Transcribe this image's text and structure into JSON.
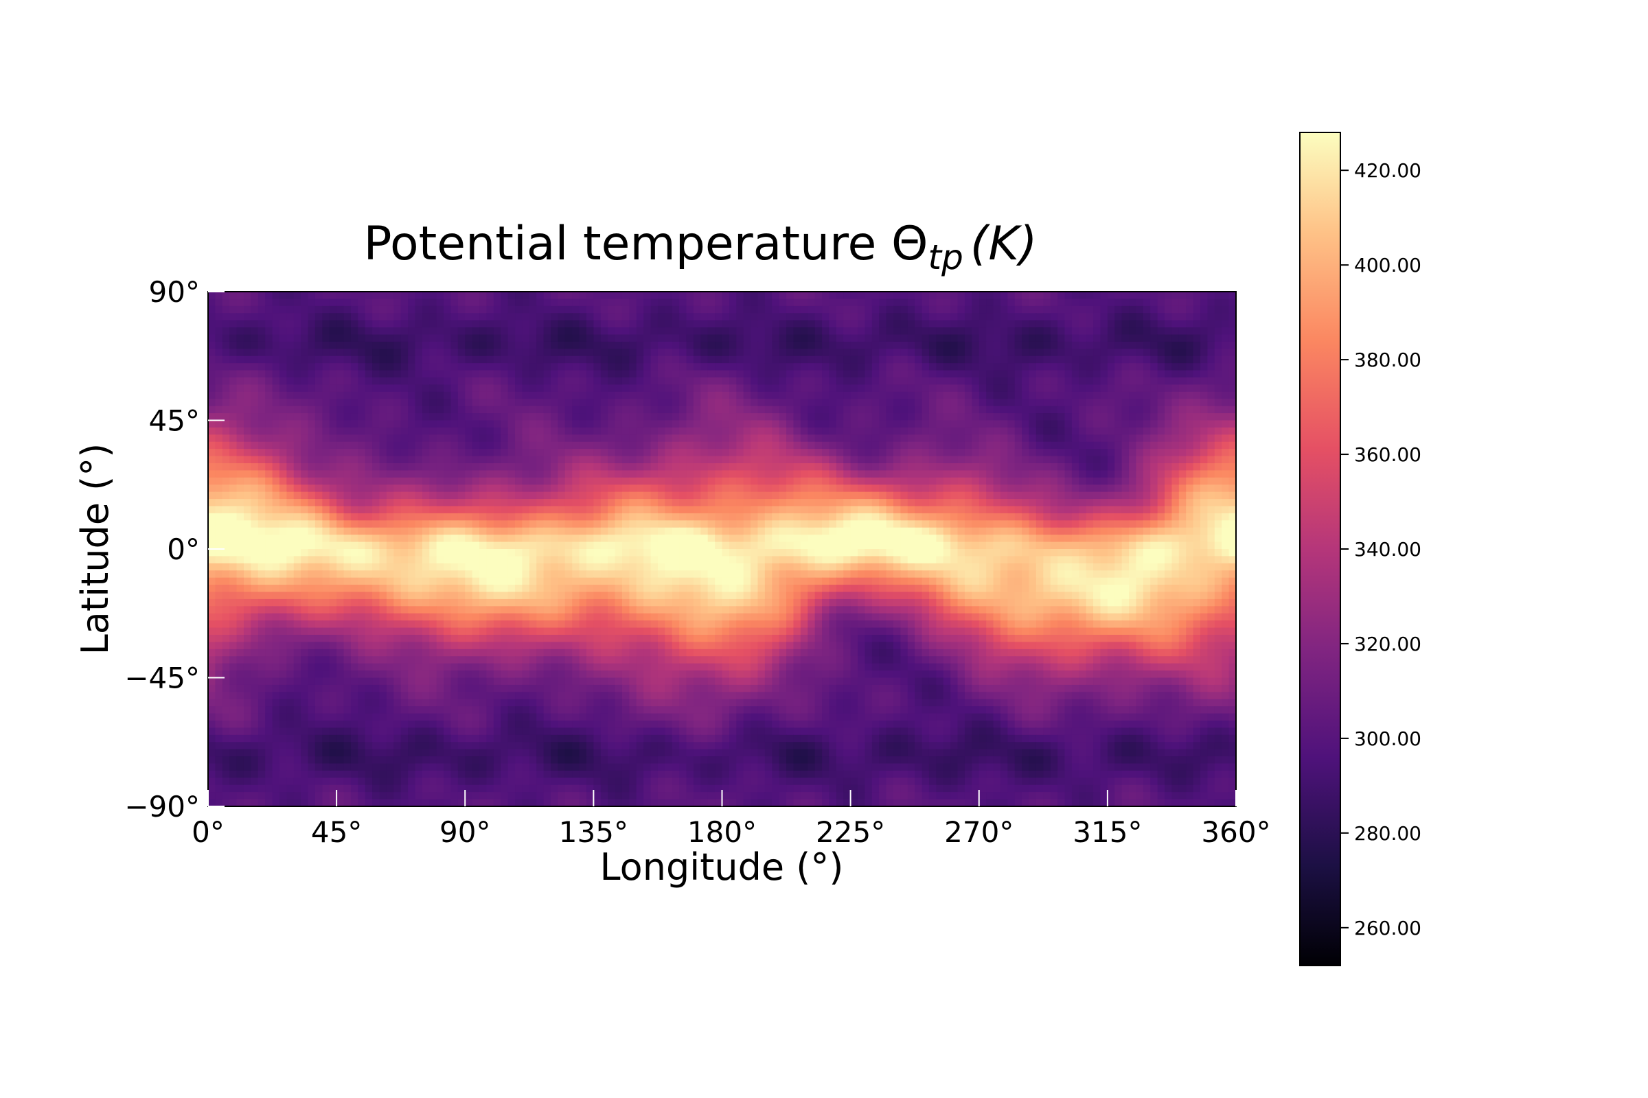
{
  "chart_data": {
    "type": "heatmap",
    "title_main": "Potential temperature Θ",
    "title_subscript": "tp",
    "title_unit": "(K)",
    "xlabel": "Longitude (°)",
    "ylabel": "Latitude (°)",
    "xlim": [
      0,
      360
    ],
    "ylim": [
      -90,
      90
    ],
    "x_ticks": [
      {
        "value": 0,
        "label": "0°"
      },
      {
        "value": 45,
        "label": "45°"
      },
      {
        "value": 90,
        "label": "90°"
      },
      {
        "value": 135,
        "label": "135°"
      },
      {
        "value": 180,
        "label": "180°"
      },
      {
        "value": 225,
        "label": "225°"
      },
      {
        "value": 270,
        "label": "270°"
      },
      {
        "value": 315,
        "label": "315°"
      },
      {
        "value": 360,
        "label": "360°"
      }
    ],
    "y_ticks": [
      {
        "value": 90,
        "label": "90°"
      },
      {
        "value": 45,
        "label": "45°"
      },
      {
        "value": 0,
        "label": "0°"
      },
      {
        "value": -45,
        "label": "−45°"
      },
      {
        "value": -90,
        "label": "−90°"
      }
    ],
    "colorbar": {
      "colormap": "magma",
      "range": [
        252,
        428
      ],
      "ticks": [
        {
          "value": 420,
          "label": "420.00"
        },
        {
          "value": 400,
          "label": "400.00"
        },
        {
          "value": 380,
          "label": "380.00"
        },
        {
          "value": 360,
          "label": "360.00"
        },
        {
          "value": 340,
          "label": "340.00"
        },
        {
          "value": 320,
          "label": "320.00"
        },
        {
          "value": 300,
          "label": "300.00"
        },
        {
          "value": 280,
          "label": "280.00"
        },
        {
          "value": 260,
          "label": "260.00"
        }
      ]
    },
    "field_description": "warm equatorial band (~380-425 K) meandering between about 35°N and 45°S, cool wavy high-latitude regions (~280-320 K)",
    "field_features": {
      "equatorial_peak": 422,
      "midlatitude_values": 330,
      "polar_values": 300,
      "min_value": 268
    }
  }
}
